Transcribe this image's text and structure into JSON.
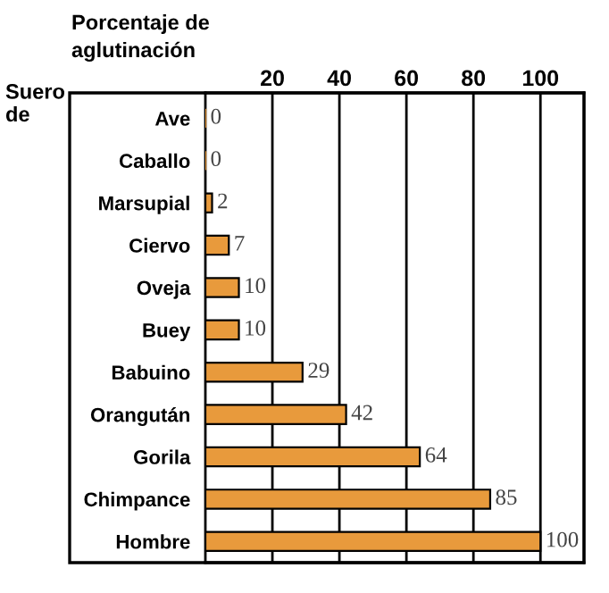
{
  "chart_data": {
    "type": "bar",
    "orientation": "horizontal",
    "title": "Porcentaje de\naglutinación",
    "ylabel": "Suero\nde",
    "categories": [
      "Ave",
      "Caballo",
      "Marsupial",
      "Ciervo",
      "Oveja",
      "Buey",
      "Babuino",
      "Orangután",
      "Gorila",
      "Chimpance",
      "Hombre"
    ],
    "values": [
      0,
      0,
      2,
      7,
      10,
      10,
      29,
      42,
      64,
      85,
      100
    ],
    "color": "#e89a3c",
    "xlim": [
      0,
      113
    ],
    "xticks": [
      20,
      40,
      60,
      80,
      100
    ],
    "grid": "x",
    "data_labels": true
  }
}
